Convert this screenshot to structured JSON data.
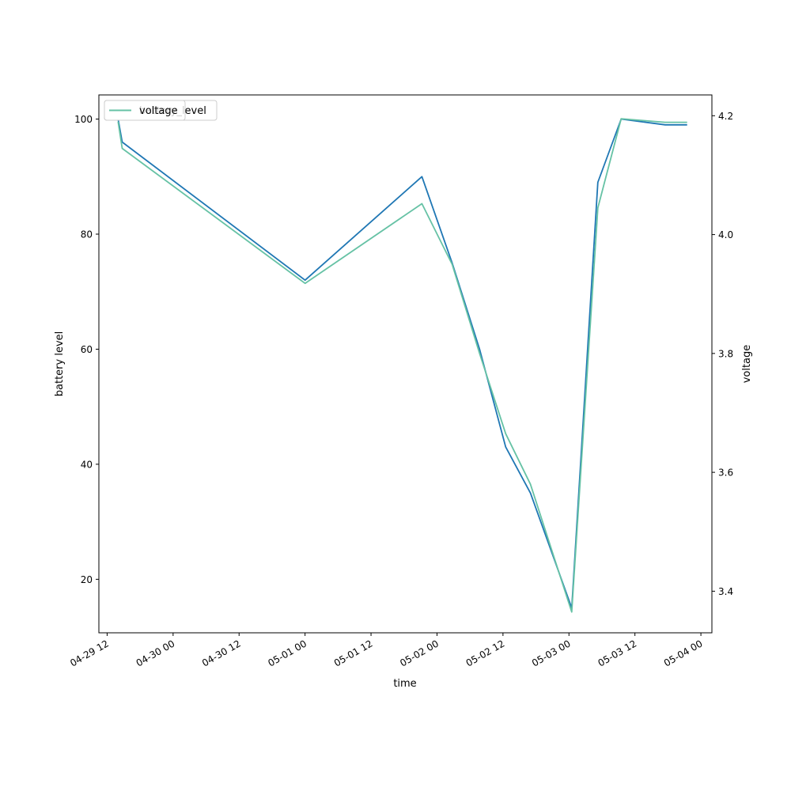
{
  "chart_data": {
    "type": "line",
    "xlabel": "time",
    "ylabel_left": "battery level",
    "ylabel_right": "voltage",
    "x_range": [
      "2024-04-29T10:30",
      "2024-05-04T02:00"
    ],
    "x_ticks": [
      {
        "t": "2024-04-29T12:00",
        "label": "04-29 12"
      },
      {
        "t": "2024-04-30T00:00",
        "label": "04-30 00"
      },
      {
        "t": "2024-04-30T12:00",
        "label": "04-30 12"
      },
      {
        "t": "2024-05-01T00:00",
        "label": "05-01 00"
      },
      {
        "t": "2024-05-01T12:00",
        "label": "05-01 12"
      },
      {
        "t": "2024-05-02T00:00",
        "label": "05-02 00"
      },
      {
        "t": "2024-05-02T12:00",
        "label": "05-02 12"
      },
      {
        "t": "2024-05-03T00:00",
        "label": "05-03 00"
      },
      {
        "t": "2024-05-03T12:00",
        "label": "05-03 12"
      },
      {
        "t": "2024-05-04T00:00",
        "label": "05-04 00"
      }
    ],
    "ylim_left": [
      10.7,
      104.2
    ],
    "yticks_left": [
      20,
      40,
      60,
      80,
      100
    ],
    "ylim_right": [
      3.33,
      4.235
    ],
    "yticks_right": [
      "3.4",
      "3.6",
      "3.8",
      "4.0",
      "4.2"
    ],
    "legend": {
      "placement": "upper-left",
      "entries": [
        {
          "label": "battery_level",
          "color": "#1f77b4",
          "axis": "left"
        },
        {
          "label": "voltage",
          "color": "#66c2a5",
          "axis": "right"
        }
      ]
    },
    "series": [
      {
        "name": "battery_level",
        "axis": "left",
        "color": "#1f77b4",
        "points": [
          [
            "2024-04-29T14:00",
            100
          ],
          [
            "2024-04-29T14:45",
            96
          ],
          [
            "2024-05-01T00:00",
            72
          ],
          [
            "2024-05-01T21:15",
            90
          ],
          [
            "2024-05-02T02:45",
            75
          ],
          [
            "2024-05-02T07:45",
            60
          ],
          [
            "2024-05-02T12:30",
            43
          ],
          [
            "2024-05-02T17:00",
            35
          ],
          [
            "2024-05-03T00:30",
            15
          ],
          [
            "2024-05-03T05:15",
            89
          ],
          [
            "2024-05-03T09:30",
            100
          ],
          [
            "2024-05-03T17:30",
            99
          ],
          [
            "2024-05-03T21:30",
            99
          ]
        ]
      },
      {
        "name": "voltage",
        "axis": "right",
        "color": "#66c2a5",
        "points": [
          [
            "2024-04-29T14:00",
            4.19
          ],
          [
            "2024-04-29T14:45",
            4.145
          ],
          [
            "2024-05-01T00:00",
            3.918
          ],
          [
            "2024-05-01T21:15",
            4.052
          ],
          [
            "2024-05-02T02:45",
            3.95
          ],
          [
            "2024-05-02T07:45",
            3.8
          ],
          [
            "2024-05-02T12:30",
            3.665
          ],
          [
            "2024-05-02T17:00",
            3.58
          ],
          [
            "2024-05-03T00:30",
            3.365
          ],
          [
            "2024-05-03T05:15",
            4.045
          ],
          [
            "2024-05-03T09:30",
            4.195
          ],
          [
            "2024-05-03T17:30",
            4.189
          ],
          [
            "2024-05-03T21:30",
            4.189
          ]
        ]
      }
    ]
  }
}
